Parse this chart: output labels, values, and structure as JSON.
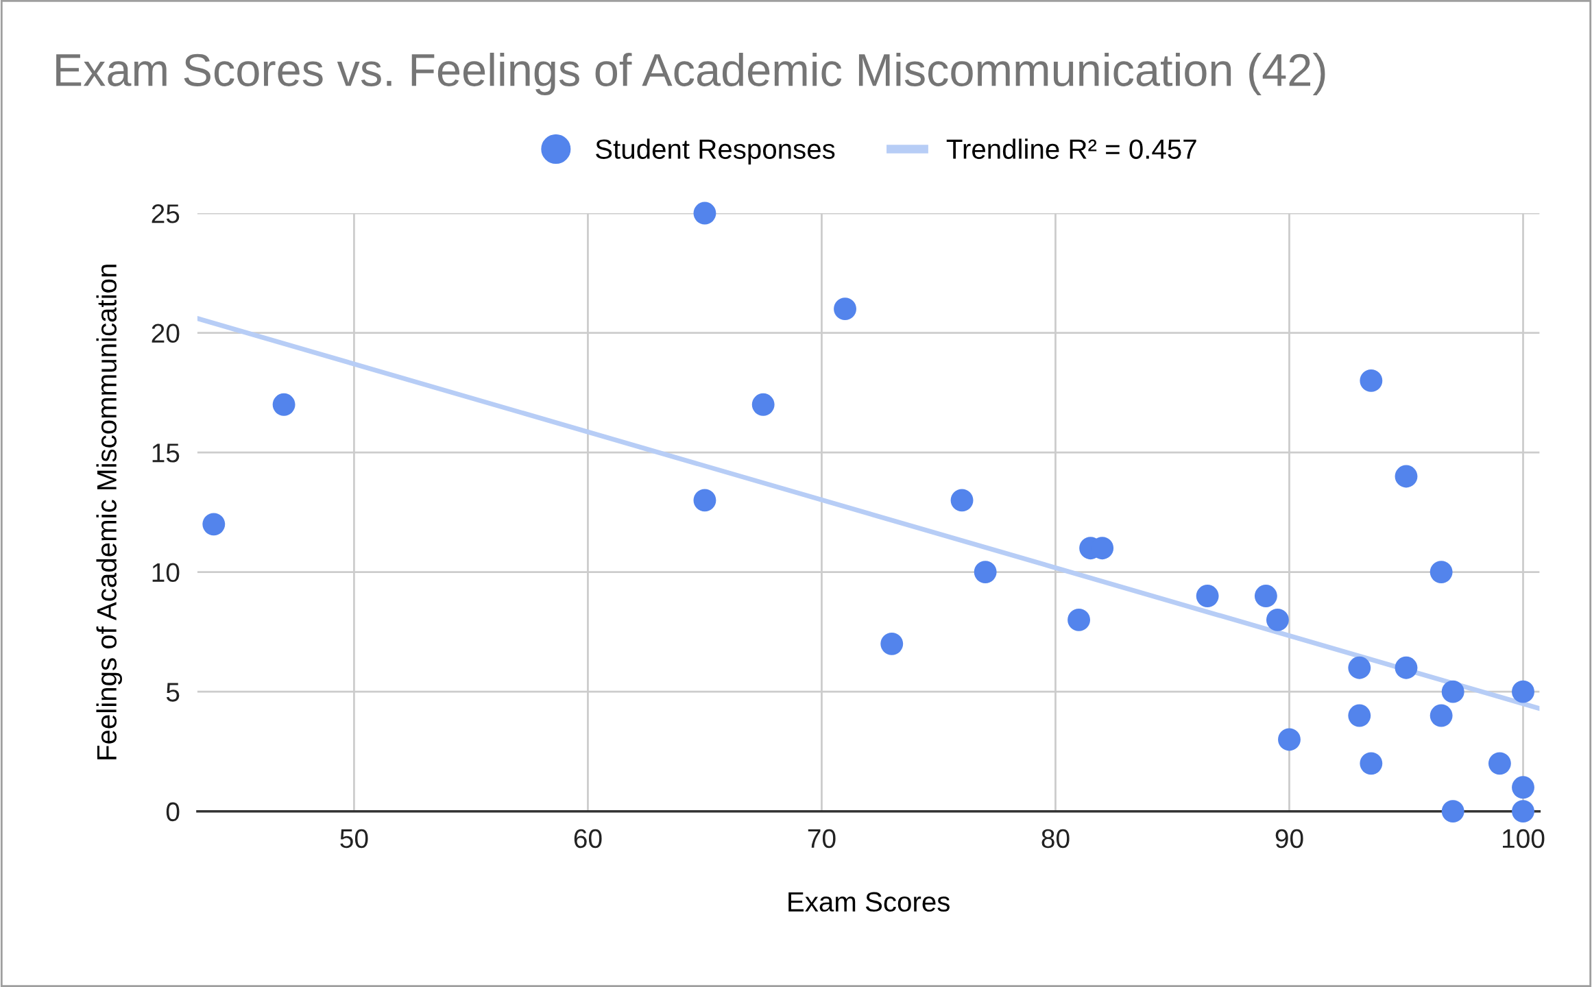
{
  "chart_data": {
    "type": "scatter",
    "title": "Exam Scores vs. Feelings of Academic Miscommunication (42)",
    "xlabel": "Exam Scores",
    "ylabel": "Feelings of Academic Miscommunication",
    "xlim": [
      43.3,
      100.7
    ],
    "ylim": [
      0,
      25
    ],
    "xticks": [
      50,
      60,
      70,
      80,
      90,
      100
    ],
    "yticks": [
      0,
      5,
      10,
      15,
      20,
      25
    ],
    "grid": true,
    "legend": "top",
    "series": [
      {
        "name": "Student Responses",
        "marker": "circle",
        "color": "#5384ec",
        "x": [
          44,
          47,
          65,
          65,
          67.5,
          71,
          73,
          76,
          77,
          81,
          81.5,
          82,
          86.5,
          89,
          89.5,
          90,
          93,
          93,
          93.5,
          93.5,
          95,
          95,
          96.5,
          96.5,
          97,
          97,
          99,
          100,
          100,
          100
        ],
        "values": [
          12,
          17,
          25,
          13,
          17,
          21,
          7,
          13,
          10,
          8,
          11,
          11,
          9,
          9,
          8,
          3,
          6,
          4,
          18,
          2,
          14,
          6,
          10,
          4,
          5,
          0,
          2,
          5,
          1,
          0
        ]
      },
      {
        "name": "Trendline R² = 0.457",
        "type": "line",
        "color": "#b7cdf6",
        "line_style": "solid",
        "x": [
          43.3,
          100.7
        ],
        "values": [
          20.6,
          4.3
        ]
      }
    ]
  }
}
